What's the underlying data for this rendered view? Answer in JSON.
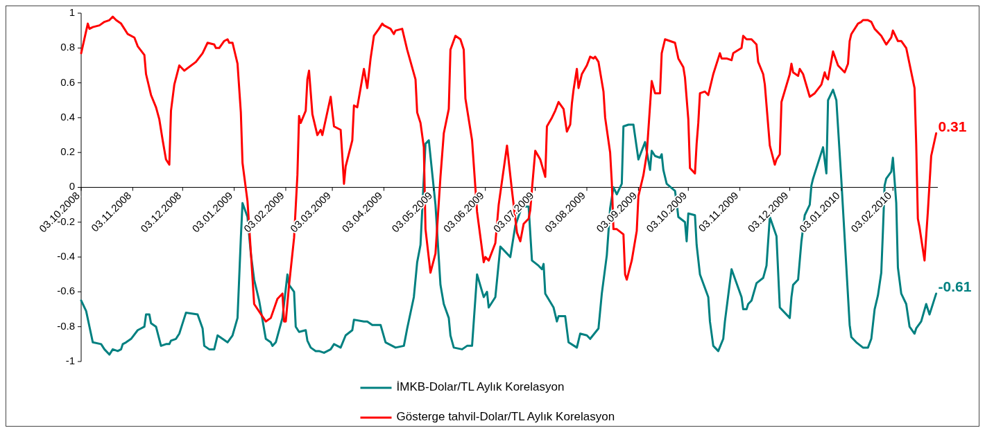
{
  "chart_data": {
    "type": "line",
    "xlim": [
      "2008-10-03",
      "2010-03-02"
    ],
    "xticks": [
      {
        "value": "2008-10-03",
        "label": "03.10.2008"
      },
      {
        "value": "2008-11-03",
        "label": "03.11.2008"
      },
      {
        "value": "2008-12-03",
        "label": "03.12.2008"
      },
      {
        "value": "2009-01-03",
        "label": "03.01.2009"
      },
      {
        "value": "2009-02-03",
        "label": "03.02.2009"
      },
      {
        "value": "2009-03-03",
        "label": "03.03.2009"
      },
      {
        "value": "2009-04-03",
        "label": "03.04.2009"
      },
      {
        "value": "2009-05-03",
        "label": "03.05.2009"
      },
      {
        "value": "2009-06-03",
        "label": "03.06.2009"
      },
      {
        "value": "2009-07-03",
        "label": "03.07.2009"
      },
      {
        "value": "2009-08-03",
        "label": "03.08.2009"
      },
      {
        "value": "2009-09-03",
        "label": "03.09.2009"
      },
      {
        "value": "2009-10-03",
        "label": "03.10.2009"
      },
      {
        "value": "2009-11-03",
        "label": "03.11.2009"
      },
      {
        "value": "2009-12-03",
        "label": "03.12.2009"
      },
      {
        "value": "2010-01-03",
        "label": "03.01.2010"
      },
      {
        "value": "2010-02-03",
        "label": "03.02.2010"
      }
    ],
    "ylim": [
      -1,
      1
    ],
    "yticks": [
      -1,
      -0.8,
      -0.6,
      -0.4,
      -0.2,
      0,
      0.2,
      0.4,
      0.6,
      0.8,
      1
    ],
    "legend": "bottom",
    "series": [
      {
        "name": "İMKB-Dolar/TL Aylık Korelasyon",
        "color": "#008080",
        "x": [
          "2008-10-03",
          "2008-10-06",
          "2008-10-08",
          "2008-10-10",
          "2008-10-15",
          "2008-10-17",
          "2008-10-20",
          "2008-10-22",
          "2008-10-25",
          "2008-10-27",
          "2008-10-28",
          "2008-10-30",
          "2008-11-02",
          "2008-11-06",
          "2008-11-08",
          "2008-11-10",
          "2008-11-11",
          "2008-11-13",
          "2008-11-14",
          "2008-11-17",
          "2008-11-20",
          "2008-11-23",
          "2008-11-25",
          "2008-11-26",
          "2008-11-29",
          "2008-12-01",
          "2008-12-03",
          "2008-12-05",
          "2008-12-12",
          "2008-12-15",
          "2008-12-16",
          "2008-12-19",
          "2008-12-22",
          "2008-12-24",
          "2008-12-27",
          "2008-12-30",
          "2009-01-02",
          "2009-01-05",
          "2009-01-07",
          "2009-01-08",
          "2009-01-11",
          "2009-01-13",
          "2009-01-15",
          "2009-01-18",
          "2009-01-22",
          "2009-01-25",
          "2009-01-26",
          "2009-01-28",
          "2009-02-01",
          "2009-02-04",
          "2009-02-05",
          "2009-02-08",
          "2009-02-09",
          "2009-02-11",
          "2009-02-15",
          "2009-02-16",
          "2009-02-18",
          "2009-02-21",
          "2009-02-23",
          "2009-02-26",
          "2009-03-02",
          "2009-03-04",
          "2009-03-08",
          "2009-03-11",
          "2009-03-15",
          "2009-03-16",
          "2009-03-22",
          "2009-03-24",
          "2009-03-27",
          "2009-04-01",
          "2009-04-04",
          "2009-04-10",
          "2009-04-15",
          "2009-04-17",
          "2009-04-21",
          "2009-04-23",
          "2009-04-25",
          "2009-04-28",
          "2009-04-30",
          "2009-05-04",
          "2009-05-07",
          "2009-05-09",
          "2009-05-12",
          "2009-05-13",
          "2009-05-15",
          "2009-05-20",
          "2009-05-23",
          "2009-05-26",
          "2009-05-29",
          "2009-06-02",
          "2009-06-04",
          "2009-06-05",
          "2009-06-09",
          "2009-06-12",
          "2009-06-18",
          "2009-06-21",
          "2009-06-25",
          "2009-06-29",
          "2009-07-01",
          "2009-07-05",
          "2009-07-07",
          "2009-07-08",
          "2009-07-09",
          "2009-07-14",
          "2009-07-16",
          "2009-07-17",
          "2009-07-21",
          "2009-07-23",
          "2009-07-28",
          "2009-07-30",
          "2009-08-03",
          "2009-08-05",
          "2009-08-10",
          "2009-08-12",
          "2009-08-15",
          "2009-08-17",
          "2009-08-19",
          "2009-08-21",
          "2009-08-24",
          "2009-08-25",
          "2009-08-28",
          "2009-08-31",
          "2009-09-03",
          "2009-09-07",
          "2009-09-10",
          "2009-09-11",
          "2009-09-13",
          "2009-09-16",
          "2009-09-17",
          "2009-09-18",
          "2009-09-20",
          "2009-09-25",
          "2009-09-26",
          "2009-09-27",
          "2009-10-01",
          "2009-10-02",
          "2009-10-03",
          "2009-10-07",
          "2009-10-08",
          "2009-10-10",
          "2009-10-15",
          "2009-10-16",
          "2009-10-18",
          "2009-10-21",
          "2009-10-24",
          "2009-10-25",
          "2009-10-29",
          "2009-11-04",
          "2009-11-05",
          "2009-11-07",
          "2009-11-08",
          "2009-11-10",
          "2009-11-13",
          "2009-11-17",
          "2009-11-19",
          "2009-11-21",
          "2009-11-25",
          "2009-11-27",
          "2009-12-03",
          "2009-12-04",
          "2009-12-05",
          "2009-12-08",
          "2009-12-10",
          "2009-12-12",
          "2009-12-15",
          "2009-12-16",
          "2009-12-17",
          "2009-12-23",
          "2009-12-25",
          "2009-12-26",
          "2009-12-29",
          "2009-12-31",
          "2010-01-03",
          "2010-01-08",
          "2010-01-09",
          "2010-01-12",
          "2010-01-16",
          "2010-01-19",
          "2010-01-21",
          "2010-01-23",
          "2010-01-25",
          "2010-01-27",
          "2010-01-28",
          "2010-01-29",
          "2010-01-30",
          "2010-02-02",
          "2010-02-03",
          "2010-02-05",
          "2010-02-06",
          "2010-02-08",
          "2010-02-11",
          "2010-02-13",
          "2010-02-16",
          "2010-02-17",
          "2010-02-20",
          "2010-02-23",
          "2010-02-25",
          "2010-03-01"
        ],
        "values": [
          -0.65,
          -0.71,
          -0.8,
          -0.89,
          -0.9,
          -0.93,
          -0.96,
          -0.93,
          -0.94,
          -0.93,
          -0.9,
          -0.89,
          -0.87,
          -0.82,
          -0.81,
          -0.8,
          -0.73,
          -0.73,
          -0.78,
          -0.8,
          -0.91,
          -0.9,
          -0.9,
          -0.88,
          -0.87,
          -0.84,
          -0.78,
          -0.72,
          -0.73,
          -0.81,
          -0.91,
          -0.93,
          -0.93,
          -0.85,
          -0.87,
          -0.89,
          -0.85,
          -0.75,
          -0.29,
          -0.09,
          -0.17,
          -0.38,
          -0.53,
          -0.65,
          -0.87,
          -0.89,
          -0.91,
          -0.89,
          -0.75,
          -0.5,
          -0.56,
          -0.6,
          -0.8,
          -0.83,
          -0.82,
          -0.88,
          -0.92,
          -0.94,
          -0.94,
          -0.95,
          -0.93,
          -0.9,
          -0.92,
          -0.85,
          -0.82,
          -0.76,
          -0.77,
          -0.77,
          -0.79,
          -0.79,
          -0.89,
          -0.92,
          -0.91,
          -0.81,
          -0.63,
          -0.43,
          -0.33,
          0.25,
          0.27,
          -0.1,
          -0.56,
          -0.67,
          -0.75,
          -0.85,
          -0.92,
          -0.93,
          -0.91,
          -0.91,
          -0.5,
          -0.63,
          -0.6,
          -0.69,
          -0.63,
          -0.34,
          -0.4,
          -0.22,
          -0.11,
          -0.11,
          -0.42,
          -0.45,
          -0.47,
          -0.44,
          -0.61,
          -0.69,
          -0.77,
          -0.74,
          -0.74,
          -0.89,
          -0.92,
          -0.84,
          -0.85,
          -0.87,
          -0.81,
          -0.61,
          -0.39,
          -0.12,
          0.0,
          -0.04,
          0.02,
          0.35,
          0.36,
          0.36,
          0.16,
          0.26,
          0.1,
          0.21,
          0.18,
          0.17,
          0.19,
          0.1,
          0.02,
          -0.02,
          -0.09,
          -0.17,
          -0.2,
          -0.31,
          -0.15,
          -0.16,
          -0.33,
          -0.5,
          -0.63,
          -0.77,
          -0.91,
          -0.94,
          -0.87,
          -0.77,
          -0.47,
          -0.63,
          -0.7,
          -0.7,
          -0.67,
          -0.65,
          -0.55,
          -0.52,
          -0.45,
          -0.17,
          -0.28,
          -0.69,
          -0.75,
          -0.63,
          -0.56,
          -0.53,
          -0.31,
          -0.16,
          -0.1,
          0.01,
          0.05,
          0.23,
          0.08,
          0.5,
          0.56,
          0.5,
          0.04,
          -0.79,
          -0.86,
          -0.89,
          -0.92,
          -0.92,
          -0.87,
          -0.7,
          -0.62,
          -0.49,
          -0.25,
          0.01,
          0.05,
          0.09,
          0.17,
          -0.09,
          -0.46,
          -0.61,
          -0.67,
          -0.8,
          -0.84,
          -0.81,
          -0.77,
          -0.67,
          -0.73,
          -0.61
        ]
      },
      {
        "name": "Gösterge tahvil-Dolar/TL Aylık Korelasyon",
        "color": "#ff0000",
        "x": [
          "2008-10-03",
          "2008-10-07",
          "2008-10-08",
          "2008-10-10",
          "2008-10-14",
          "2008-10-17",
          "2008-10-20",
          "2008-10-22",
          "2008-10-24",
          "2008-10-27",
          "2008-10-29",
          "2008-10-31",
          "2008-11-04",
          "2008-11-06",
          "2008-11-10",
          "2008-11-11",
          "2008-11-14",
          "2008-11-17",
          "2008-11-19",
          "2008-11-21",
          "2008-11-23",
          "2008-11-25",
          "2008-11-26",
          "2008-11-28",
          "2008-12-01",
          "2008-12-04",
          "2008-12-11",
          "2008-12-15",
          "2008-12-18",
          "2008-12-22",
          "2008-12-23",
          "2008-12-25",
          "2008-12-28",
          "2008-12-30",
          "2008-12-31",
          "2009-01-02",
          "2009-01-05",
          "2009-01-07",
          "2009-01-08",
          "2009-01-11",
          "2009-01-13",
          "2009-01-15",
          "2009-01-22",
          "2009-01-25",
          "2009-01-29",
          "2009-02-01",
          "2009-02-02",
          "2009-02-03",
          "2009-02-05",
          "2009-02-08",
          "2009-02-10",
          "2009-02-11",
          "2009-02-12",
          "2009-02-15",
          "2009-02-16",
          "2009-02-17",
          "2009-02-19",
          "2009-02-22",
          "2009-02-24",
          "2009-02-25",
          "2009-03-02",
          "2009-03-04",
          "2009-03-08",
          "2009-03-09",
          "2009-03-10",
          "2009-03-11",
          "2009-03-15",
          "2009-03-16",
          "2009-03-18",
          "2009-03-22",
          "2009-03-24",
          "2009-03-26",
          "2009-03-28",
          "2009-03-31",
          "2009-04-02",
          "2009-04-03",
          "2009-04-05",
          "2009-04-07",
          "2009-04-09",
          "2009-04-10",
          "2009-04-14",
          "2009-04-17",
          "2009-04-22",
          "2009-04-23",
          "2009-04-25",
          "2009-04-27",
          "2009-04-28",
          "2009-05-01",
          "2009-05-04",
          "2009-05-07",
          "2009-05-09",
          "2009-05-12",
          "2009-05-13",
          "2009-05-16",
          "2009-05-19",
          "2009-05-21",
          "2009-05-22",
          "2009-05-26",
          "2009-05-29",
          "2009-06-02",
          "2009-06-03",
          "2009-06-05",
          "2009-06-09",
          "2009-06-11",
          "2009-06-16",
          "2009-06-19",
          "2009-06-22",
          "2009-06-24",
          "2009-06-26",
          "2009-06-29",
          "2009-06-30",
          "2009-07-01",
          "2009-07-03",
          "2009-07-06",
          "2009-07-09",
          "2009-07-10",
          "2009-07-13",
          "2009-07-15",
          "2009-07-17",
          "2009-07-20",
          "2009-07-22",
          "2009-07-24",
          "2009-07-25",
          "2009-07-26",
          "2009-07-28",
          "2009-07-29",
          "2009-07-31",
          "2009-08-03",
          "2009-08-05",
          "2009-08-07",
          "2009-08-08",
          "2009-08-10",
          "2009-08-13",
          "2009-08-14",
          "2009-08-17",
          "2009-08-18",
          "2009-08-19",
          "2009-08-21",
          "2009-08-25",
          "2009-08-26",
          "2009-08-27",
          "2009-08-30",
          "2009-09-02",
          "2009-09-03",
          "2009-09-06",
          "2009-09-08",
          "2009-09-11",
          "2009-09-13",
          "2009-09-16",
          "2009-09-17",
          "2009-09-19",
          "2009-09-25",
          "2009-09-27",
          "2009-09-30",
          "2009-10-01",
          "2009-10-03",
          "2009-10-04",
          "2009-10-07",
          "2009-10-08",
          "2009-10-09",
          "2009-10-10",
          "2009-10-13",
          "2009-10-15",
          "2009-10-18",
          "2009-10-22",
          "2009-10-23",
          "2009-10-26",
          "2009-10-29",
          "2009-10-30",
          "2009-11-04",
          "2009-11-05",
          "2009-11-07",
          "2009-11-10",
          "2009-11-13",
          "2009-11-14",
          "2009-11-17",
          "2009-11-18",
          "2009-11-21",
          "2009-11-24",
          "2009-11-25",
          "2009-11-27",
          "2009-11-28",
          "2009-12-03",
          "2009-12-04",
          "2009-12-05",
          "2009-12-08",
          "2009-12-09",
          "2009-12-11",
          "2009-12-15",
          "2009-12-18",
          "2009-12-22",
          "2009-12-24",
          "2009-12-25",
          "2009-12-26",
          "2009-12-29",
          "2010-01-01",
          "2010-01-05",
          "2010-01-07",
          "2010-01-08",
          "2010-01-09",
          "2010-01-13",
          "2010-01-15",
          "2010-01-16",
          "2010-01-19",
          "2010-01-21",
          "2010-01-23",
          "2010-01-27",
          "2010-01-30",
          "2010-02-02",
          "2010-02-03",
          "2010-02-06",
          "2010-02-08",
          "2010-02-11",
          "2010-02-16",
          "2010-02-17",
          "2010-02-18",
          "2010-02-19",
          "2010-02-22",
          "2010-02-24",
          "2010-02-26",
          "2010-03-01"
        ],
        "values": [
          0.77,
          0.94,
          0.91,
          0.92,
          0.93,
          0.95,
          0.96,
          0.98,
          0.96,
          0.94,
          0.91,
          0.88,
          0.86,
          0.81,
          0.76,
          0.65,
          0.53,
          0.46,
          0.39,
          0.27,
          0.16,
          0.13,
          0.44,
          0.59,
          0.7,
          0.67,
          0.72,
          0.77,
          0.83,
          0.82,
          0.8,
          0.8,
          0.84,
          0.85,
          0.83,
          0.83,
          0.71,
          0.43,
          0.14,
          -0.08,
          -0.37,
          -0.67,
          -0.77,
          -0.75,
          -0.64,
          -0.61,
          -0.77,
          -0.77,
          -0.56,
          -0.29,
          0.07,
          0.41,
          0.37,
          0.44,
          0.62,
          0.67,
          0.42,
          0.3,
          0.33,
          0.3,
          0.52,
          0.35,
          0.33,
          0.18,
          0.02,
          0.12,
          0.27,
          0.47,
          0.46,
          0.68,
          0.57,
          0.74,
          0.87,
          0.91,
          0.94,
          0.93,
          0.92,
          0.91,
          0.88,
          0.9,
          0.91,
          0.79,
          0.62,
          0.43,
          0.37,
          0.23,
          -0.24,
          -0.49,
          -0.38,
          0.06,
          0.31,
          0.45,
          0.79,
          0.87,
          0.85,
          0.79,
          0.51,
          0.27,
          -0.14,
          -0.43,
          -0.4,
          -0.42,
          -0.32,
          -0.1,
          0.24,
          -0.02,
          -0.26,
          -0.31,
          -0.21,
          -0.18,
          -0.13,
          -0.01,
          0.21,
          0.16,
          0.06,
          0.35,
          0.4,
          0.44,
          0.49,
          0.45,
          0.32,
          0.36,
          0.48,
          0.56,
          0.68,
          0.57,
          0.65,
          0.7,
          0.75,
          0.74,
          0.75,
          0.72,
          0.55,
          0.4,
          0.2,
          0.03,
          -0.24,
          -0.24,
          -0.27,
          -0.5,
          -0.53,
          -0.42,
          -0.25,
          -0.05,
          0.07,
          0.19,
          0.61,
          0.54,
          0.54,
          0.77,
          0.85,
          0.83,
          0.74,
          0.69,
          0.63,
          0.39,
          0.11,
          0.08,
          0.25,
          0.37,
          0.54,
          0.55,
          0.53,
          0.65,
          0.77,
          0.74,
          0.74,
          0.73,
          0.77,
          0.8,
          0.87,
          0.85,
          0.85,
          0.82,
          0.72,
          0.65,
          0.59,
          0.24,
          0.13,
          0.16,
          0.19,
          0.49,
          0.65,
          0.71,
          0.66,
          0.64,
          0.68,
          0.65,
          0.52,
          0.54,
          0.59,
          0.66,
          0.63,
          0.62,
          0.78,
          0.7,
          0.66,
          0.71,
          0.84,
          0.88,
          0.94,
          0.95,
          0.96,
          0.96,
          0.95,
          0.91,
          0.87,
          0.82,
          0.86,
          0.9,
          0.84,
          0.84,
          0.8,
          0.57,
          0.25,
          -0.18,
          -0.23,
          -0.42,
          -0.14,
          0.18,
          0.31
        ]
      }
    ],
    "annotations": [
      {
        "text": "0.31",
        "x": "2010-03-01",
        "y": 0.31
      },
      {
        "text": "-0.61",
        "x": "2010-03-01",
        "y": -0.61
      }
    ]
  }
}
